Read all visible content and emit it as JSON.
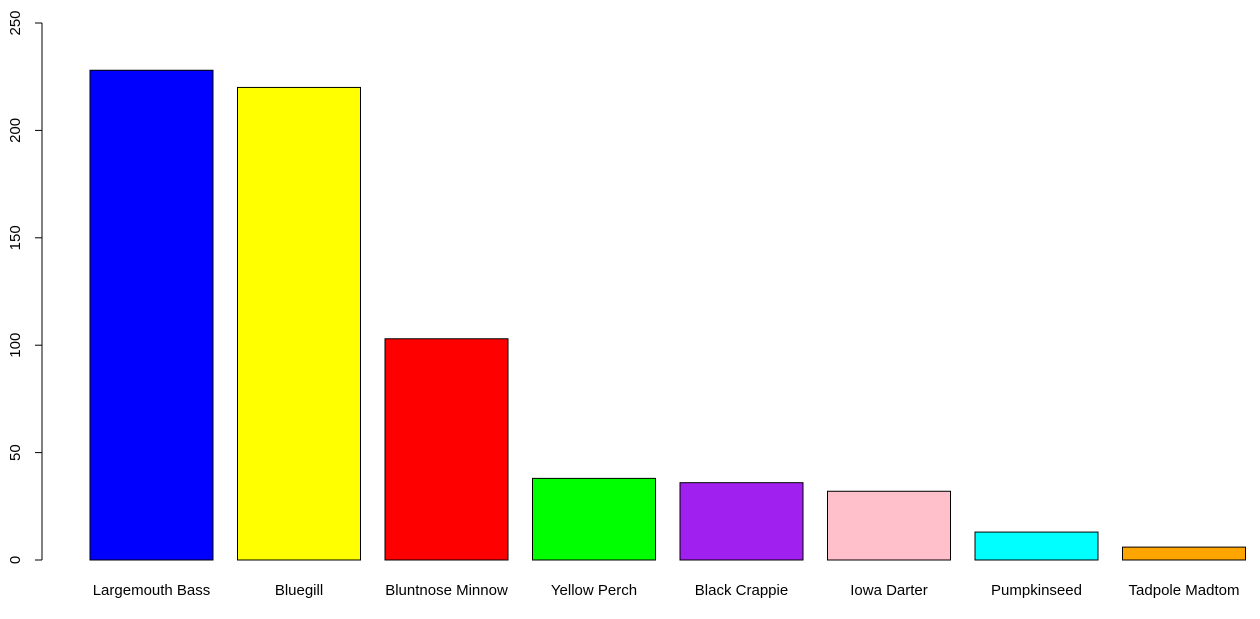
{
  "chart_data": {
    "type": "bar",
    "title": "",
    "xlabel": "",
    "ylabel": "",
    "ylim": [
      0,
      250
    ],
    "yticks": [
      "0",
      "50",
      "100",
      "150",
      "200",
      "250"
    ],
    "grid": false,
    "categories": [
      "Largemouth Bass",
      "Bluegill",
      "Bluntnose Minnow",
      "Yellow Perch",
      "Black Crappie",
      "Iowa Darter",
      "Pumpkinseed",
      "Tadpole Madtom"
    ],
    "values": [
      228,
      220,
      103,
      38,
      36,
      32,
      13,
      6
    ],
    "colors": [
      "#0000ff",
      "#ffff00",
      "#ff0000",
      "#00ff00",
      "#a020f0",
      "#ffc0cb",
      "#00ffff",
      "#ffa500"
    ]
  }
}
